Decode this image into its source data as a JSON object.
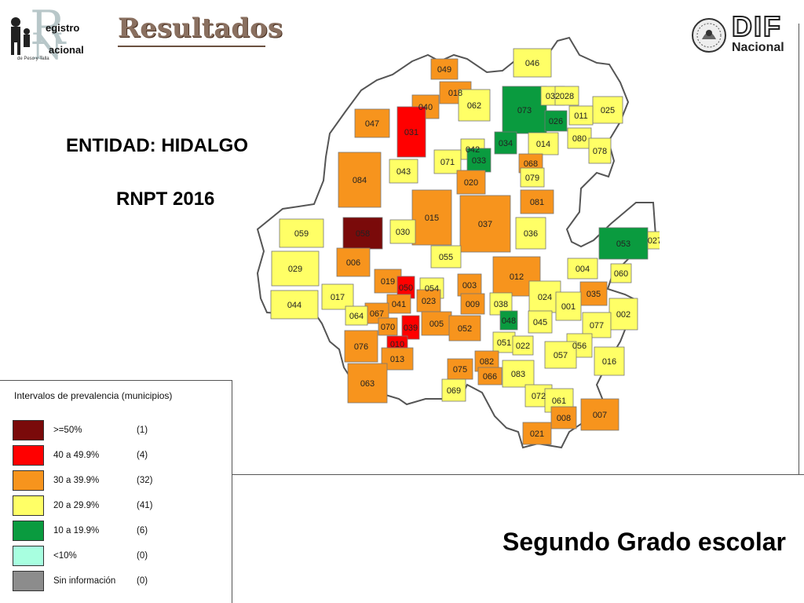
{
  "header": {
    "title": "Resultados",
    "logo_left": {
      "word1": "egistro",
      "word2": "acional",
      "big_r": "R",
      "big_n": "N",
      "sub": "de Peso y Talla"
    },
    "logo_right": {
      "word": "DIF",
      "sub": "Nacional"
    }
  },
  "info": {
    "entidad": "ENTIDAD: HIDALGO",
    "rnpt": "RNPT 2016"
  },
  "subtitle": "Segundo Grado escolar",
  "legend": {
    "title": "Intervalos de prevalencia (municipios)",
    "items": [
      {
        "range": ">=50%",
        "count": "(1)",
        "color": "#7a0a0a"
      },
      {
        "range": "40 a 49.9%",
        "count": "(4)",
        "color": "#ff0000"
      },
      {
        "range": "30 a 39.9%",
        "count": "(32)",
        "color": "#f7941d"
      },
      {
        "range": "20 a 29.9%",
        "count": "(41)",
        "color": "#ffff66"
      },
      {
        "range": "10 a 19.9%",
        "count": "(6)",
        "color": "#0a9b3f"
      },
      {
        "range": "<10%",
        "count": "(0)",
        "color": "#a8ffe0"
      },
      {
        "range": "Sin información",
        "count": "(0)",
        "color": "#8c8c8c"
      }
    ]
  },
  "map": {
    "state": "Hidalgo",
    "municipios": [
      {
        "id": "049",
        "c": 2
      },
      {
        "id": "046",
        "c": 3
      },
      {
        "id": "018",
        "c": 2
      },
      {
        "id": "040",
        "c": 2
      },
      {
        "id": "062",
        "c": 3
      },
      {
        "id": "073",
        "c": 4
      },
      {
        "id": "032",
        "c": 3
      },
      {
        "id": "028",
        "c": 3
      },
      {
        "id": "025",
        "c": 3
      },
      {
        "id": "011",
        "c": 3
      },
      {
        "id": "026",
        "c": 4
      },
      {
        "id": "047",
        "c": 2
      },
      {
        "id": "031",
        "c": 1
      },
      {
        "id": "080",
        "c": 3
      },
      {
        "id": "078",
        "c": 3
      },
      {
        "id": "034",
        "c": 4
      },
      {
        "id": "014",
        "c": 3
      },
      {
        "id": "042",
        "c": 3
      },
      {
        "id": "071",
        "c": 3
      },
      {
        "id": "033",
        "c": 4
      },
      {
        "id": "068",
        "c": 2
      },
      {
        "id": "043",
        "c": 3
      },
      {
        "id": "084",
        "c": 2
      },
      {
        "id": "020",
        "c": 2
      },
      {
        "id": "079",
        "c": 3
      },
      {
        "id": "081",
        "c": 2
      },
      {
        "id": "015",
        "c": 2
      },
      {
        "id": "037",
        "c": 2
      },
      {
        "id": "059",
        "c": 3
      },
      {
        "id": "058",
        "c": 0
      },
      {
        "id": "030",
        "c": 3
      },
      {
        "id": "036",
        "c": 3
      },
      {
        "id": "053",
        "c": 4
      },
      {
        "id": "027",
        "c": 3
      },
      {
        "id": "029",
        "c": 3
      },
      {
        "id": "006",
        "c": 2
      },
      {
        "id": "055",
        "c": 3
      },
      {
        "id": "004",
        "c": 3
      },
      {
        "id": "060",
        "c": 3
      },
      {
        "id": "012",
        "c": 2
      },
      {
        "id": "019",
        "c": 2
      },
      {
        "id": "050",
        "c": 1
      },
      {
        "id": "054",
        "c": 3
      },
      {
        "id": "003",
        "c": 2
      },
      {
        "id": "024",
        "c": 3
      },
      {
        "id": "035",
        "c": 2
      },
      {
        "id": "017",
        "c": 3
      },
      {
        "id": "041",
        "c": 2
      },
      {
        "id": "023",
        "c": 2
      },
      {
        "id": "009",
        "c": 2
      },
      {
        "id": "038",
        "c": 3
      },
      {
        "id": "001",
        "c": 3
      },
      {
        "id": "044",
        "c": 3
      },
      {
        "id": "067",
        "c": 2
      },
      {
        "id": "064",
        "c": 3
      },
      {
        "id": "002",
        "c": 3
      },
      {
        "id": "070",
        "c": 2
      },
      {
        "id": "039",
        "c": 1
      },
      {
        "id": "005",
        "c": 2
      },
      {
        "id": "052",
        "c": 2
      },
      {
        "id": "048",
        "c": 4
      },
      {
        "id": "045",
        "c": 3
      },
      {
        "id": "077",
        "c": 3
      },
      {
        "id": "076",
        "c": 2
      },
      {
        "id": "010",
        "c": 1
      },
      {
        "id": "051",
        "c": 3
      },
      {
        "id": "022",
        "c": 3
      },
      {
        "id": "056",
        "c": 3
      },
      {
        "id": "013",
        "c": 2
      },
      {
        "id": "057",
        "c": 3
      },
      {
        "id": "016",
        "c": 3
      },
      {
        "id": "075",
        "c": 2
      },
      {
        "id": "082",
        "c": 2
      },
      {
        "id": "066",
        "c": 2
      },
      {
        "id": "083",
        "c": 3
      },
      {
        "id": "063",
        "c": 2
      },
      {
        "id": "069",
        "c": 3
      },
      {
        "id": "072",
        "c": 3
      },
      {
        "id": "061",
        "c": 3
      },
      {
        "id": "007",
        "c": 2
      },
      {
        "id": "008",
        "c": 2
      },
      {
        "id": "021",
        "c": 2
      }
    ]
  }
}
